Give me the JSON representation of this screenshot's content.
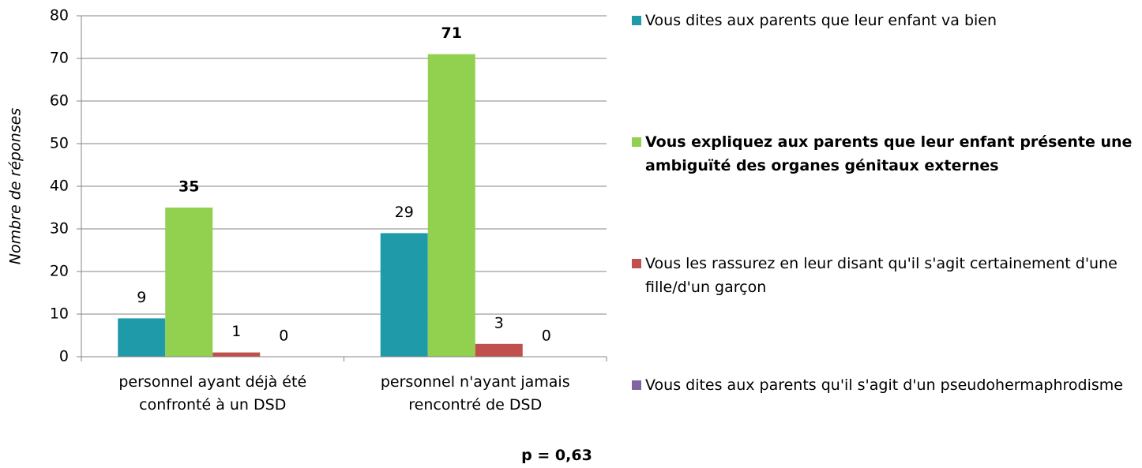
{
  "chart_data": {
    "type": "bar",
    "y_label": "Nombre de réponses",
    "annotation": "p = 0,63",
    "categories": [
      "personnel ayant déjà été confronté à un DSD",
      "personnel n'ayant jamais rencontré de DSD"
    ],
    "series": [
      {
        "name": "Vous dites aux parents que leur enfant va bien",
        "color": "#1f9aa8",
        "values": [
          9,
          29
        ]
      },
      {
        "name": "Vous expliquez aux parents que leur enfant présente une ambiguïté des organes génitaux externes",
        "color": "#92d050",
        "values": [
          35,
          71
        ],
        "bold": true
      },
      {
        "name": "Vous les rassurez en leur disant qu'il s'agit certainement d'une fille/d'un garçon",
        "color": "#c0504d",
        "values": [
          1,
          3
        ]
      },
      {
        "name": "Vous dites aux parents qu'il s'agit d'un pseudohermaphrodisme",
        "color": "#8064a2",
        "values": [
          0,
          0
        ]
      }
    ],
    "ylim": [
      0,
      80
    ],
    "yticks": [
      0,
      10,
      20,
      30,
      40,
      50,
      60,
      70,
      80
    ],
    "grid": true,
    "legend": "right"
  }
}
